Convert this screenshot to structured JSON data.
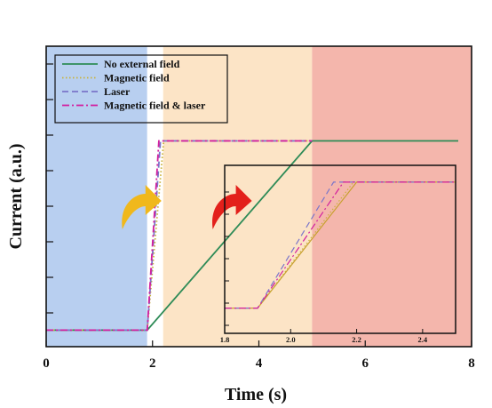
{
  "chart_data": {
    "type": "line",
    "xlabel": "Time (s)",
    "ylabel": "Current (a.u.)",
    "xlim": [
      0,
      8
    ],
    "ylim": [
      0,
      10
    ],
    "x_ticks": [
      "0",
      "2",
      "4",
      "6",
      "8"
    ],
    "y_tick_labels_shown": false,
    "legend_position": "top-left",
    "background_regions": [
      {
        "x": [
          0,
          1.9
        ],
        "color": "#b8cff0"
      },
      {
        "x": [
          1.9,
          2.2
        ],
        "color": "#ffffff"
      },
      {
        "x": [
          2.2,
          5.0
        ],
        "color": "#fce4c6"
      },
      {
        "x": [
          5.0,
          8.0
        ],
        "color": "#f4b6ac"
      }
    ],
    "series": [
      {
        "name": "No external field",
        "color": "#2e8b57",
        "dash": "solid",
        "points": [
          [
            0,
            0.55
          ],
          [
            1.9,
            0.55
          ],
          [
            5.0,
            6.85
          ],
          [
            7.75,
            6.85
          ]
        ]
      },
      {
        "name": "Magnetic field",
        "color": "#c9b23a",
        "dash": "dot",
        "points": [
          [
            0,
            0.55
          ],
          [
            1.9,
            0.55
          ],
          [
            2.21,
            6.85
          ],
          [
            5.0,
            6.85
          ]
        ]
      },
      {
        "name": "Laser",
        "color": "#7b76c9",
        "dash": "dash",
        "points": [
          [
            0,
            0.55
          ],
          [
            1.9,
            0.55
          ],
          [
            2.15,
            6.85
          ],
          [
            5.0,
            6.85
          ]
        ]
      },
      {
        "name": "Magnetic field & laser",
        "color": "#d21f9e",
        "dash": "dashdot",
        "points": [
          [
            0,
            0.55
          ],
          [
            1.9,
            0.55
          ],
          [
            2.12,
            6.85
          ],
          [
            5.0,
            6.85
          ]
        ]
      }
    ],
    "inset": {
      "xlim": [
        1.8,
        2.5
      ],
      "x_ticks": [
        "1.8",
        "2.0",
        "2.2",
        "2.4"
      ],
      "ylim": [
        0,
        1
      ],
      "series": [
        {
          "name": "No external field",
          "color": "#c8a030",
          "dash": "solid",
          "points": [
            [
              1.8,
              0.15
            ],
            [
              1.9,
              0.15
            ],
            [
              2.2,
              0.9
            ],
            [
              2.5,
              0.9
            ]
          ]
        },
        {
          "name": "Magnetic field",
          "color": "#c9b23a",
          "dash": "dot",
          "points": [
            [
              1.8,
              0.15
            ],
            [
              1.9,
              0.15
            ],
            [
              2.19,
              0.9
            ],
            [
              2.5,
              0.9
            ]
          ]
        },
        {
          "name": "Laser",
          "color": "#7b76c9",
          "dash": "dash",
          "points": [
            [
              1.8,
              0.15
            ],
            [
              1.9,
              0.15
            ],
            [
              2.13,
              0.9
            ],
            [
              2.5,
              0.9
            ]
          ]
        },
        {
          "name": "Magnetic field & laser",
          "color": "#d21f9e",
          "dash": "dashdot",
          "points": [
            [
              1.8,
              0.15
            ],
            [
              1.9,
              0.15
            ],
            [
              2.16,
              0.9
            ],
            [
              2.5,
              0.9
            ]
          ]
        }
      ]
    },
    "annotations": [
      {
        "type": "curved-arrow",
        "color": "#f0b81c",
        "at_x": 1.6
      },
      {
        "type": "curved-arrow",
        "color": "#e3201b",
        "at_x": 3.3
      }
    ]
  }
}
